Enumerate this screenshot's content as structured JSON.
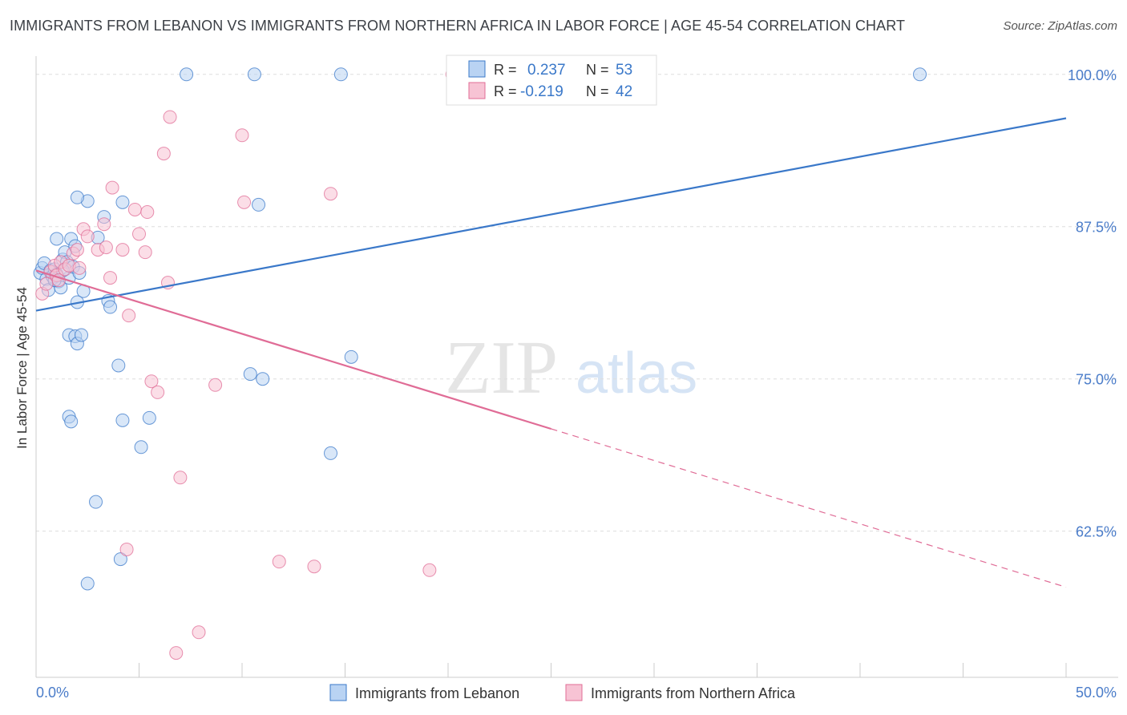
{
  "header": {
    "title": "IMMIGRANTS FROM LEBANON VS IMMIGRANTS FROM NORTHERN AFRICA IN LABOR FORCE | AGE 45-54 CORRELATION CHART",
    "source": "Source: ZipAtlas.com"
  },
  "watermark": {
    "zip": "ZIP",
    "atlas": "atlas"
  },
  "legend_box": {
    "rows": [
      {
        "r_label": "R =",
        "r_value": "0.237",
        "n_label": "N =",
        "n_value": "53"
      },
      {
        "r_label": "R =",
        "r_value": "-0.219",
        "n_label": "N =",
        "n_value": "42"
      }
    ]
  },
  "colors": {
    "blue": "#3a78c9",
    "blue_fill": "#b9d3f3",
    "pink": "#e06c96",
    "pink_fill": "#f7c3d4",
    "grid": "#dddddd",
    "tick_text": "#4a7cc9"
  },
  "chart_data": {
    "type": "scatter",
    "title": "IMMIGRANTS FROM LEBANON VS IMMIGRANTS FROM NORTHERN AFRICA IN LABOR FORCE | AGE 45-54 CORRELATION CHART",
    "xlabel": "",
    "ylabel": "In Labor Force | Age 45-54",
    "xlim": [
      0,
      50
    ],
    "ylim": [
      50.5,
      101.5
    ],
    "x_tick_labels": [
      "0.0%",
      "50.0%"
    ],
    "y_ticks": [
      62.5,
      75.0,
      87.5,
      100.0
    ],
    "y_tick_labels": [
      "62.5%",
      "75.0%",
      "87.5%",
      "100.0%"
    ],
    "grid": true,
    "legend_position": "bottom",
    "series": [
      {
        "name": "Immigrants from Lebanon",
        "R": 0.237,
        "N": 53,
        "trend": {
          "x": [
            0,
            50
          ],
          "y": [
            80.6,
            96.4
          ],
          "dashed_from": null
        },
        "points": [
          [
            0.2,
            83.7
          ],
          [
            0.3,
            84.1
          ],
          [
            0.4,
            84.5
          ],
          [
            0.5,
            83.2
          ],
          [
            0.6,
            82.3
          ],
          [
            0.7,
            83.9
          ],
          [
            0.8,
            83.4
          ],
          [
            0.9,
            84.0
          ],
          [
            1.0,
            83.6
          ],
          [
            1.1,
            83.0
          ],
          [
            1.2,
            82.5
          ],
          [
            1.3,
            84.8
          ],
          [
            1.4,
            85.4
          ],
          [
            1.5,
            84.6
          ],
          [
            1.6,
            83.3
          ],
          [
            1.7,
            86.5
          ],
          [
            1.8,
            84.2
          ],
          [
            1.9,
            85.9
          ],
          [
            2.1,
            83.7
          ],
          [
            2.3,
            82.2
          ],
          [
            1.6,
            78.6
          ],
          [
            1.9,
            78.5
          ],
          [
            2.0,
            77.9
          ],
          [
            2.2,
            78.6
          ],
          [
            2.0,
            81.3
          ],
          [
            3.5,
            81.4
          ],
          [
            3.6,
            80.9
          ],
          [
            2.5,
            89.6
          ],
          [
            2.0,
            89.9
          ],
          [
            3.3,
            88.3
          ],
          [
            4.2,
            89.5
          ],
          [
            3.0,
            86.6
          ],
          [
            7.3,
            100.0
          ],
          [
            10.6,
            100.0
          ],
          [
            14.8,
            100.0
          ],
          [
            42.9,
            100.0
          ],
          [
            10.8,
            89.3
          ],
          [
            4.0,
            76.1
          ],
          [
            1.6,
            71.9
          ],
          [
            1.7,
            71.5
          ],
          [
            4.2,
            71.6
          ],
          [
            5.5,
            71.8
          ],
          [
            10.4,
            75.4
          ],
          [
            11.0,
            75.0
          ],
          [
            15.3,
            76.8
          ],
          [
            5.1,
            69.4
          ],
          [
            14.3,
            68.9
          ],
          [
            2.9,
            64.9
          ],
          [
            4.1,
            60.2
          ],
          [
            2.5,
            58.2
          ],
          [
            1.0,
            86.5
          ],
          [
            1.3,
            83.9
          ],
          [
            0.9,
            83.1
          ]
        ]
      },
      {
        "name": "Immigrants from Northern Africa",
        "R": -0.219,
        "N": 42,
        "trend": {
          "x": [
            0,
            50
          ],
          "y": [
            83.9,
            57.9
          ],
          "dashed_from": 25.0
        },
        "points": [
          [
            0.3,
            82.0
          ],
          [
            0.5,
            82.8
          ],
          [
            0.7,
            83.8
          ],
          [
            0.9,
            84.3
          ],
          [
            1.0,
            83.5
          ],
          [
            1.1,
            83.1
          ],
          [
            1.2,
            84.6
          ],
          [
            1.4,
            84.0
          ],
          [
            1.6,
            84.3
          ],
          [
            1.8,
            85.3
          ],
          [
            2.0,
            85.6
          ],
          [
            2.1,
            84.1
          ],
          [
            2.3,
            87.3
          ],
          [
            2.5,
            86.7
          ],
          [
            3.0,
            85.6
          ],
          [
            3.3,
            87.7
          ],
          [
            3.4,
            85.8
          ],
          [
            3.6,
            83.3
          ],
          [
            3.7,
            90.7
          ],
          [
            4.2,
            85.6
          ],
          [
            4.5,
            80.2
          ],
          [
            4.8,
            88.9
          ],
          [
            5.0,
            86.9
          ],
          [
            5.3,
            85.4
          ],
          [
            5.4,
            88.7
          ],
          [
            5.6,
            74.8
          ],
          [
            5.9,
            73.9
          ],
          [
            6.2,
            93.5
          ],
          [
            6.4,
            82.9
          ],
          [
            6.5,
            96.5
          ],
          [
            7.0,
            66.9
          ],
          [
            8.7,
            74.5
          ],
          [
            10.0,
            95.0
          ],
          [
            10.1,
            89.5
          ],
          [
            14.3,
            90.2
          ],
          [
            20.2,
            100.0
          ],
          [
            4.4,
            61.0
          ],
          [
            11.8,
            60.0
          ],
          [
            13.5,
            59.6
          ],
          [
            19.1,
            59.3
          ],
          [
            7.9,
            54.2
          ],
          [
            6.8,
            52.5
          ]
        ]
      }
    ]
  }
}
